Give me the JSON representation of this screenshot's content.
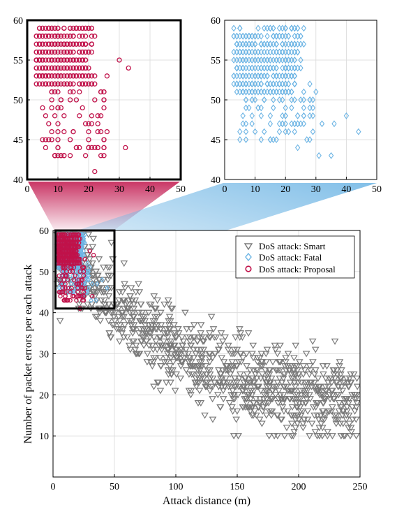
{
  "chart_data": {
    "type": "scatter",
    "main": {
      "xlabel": "Attack distance (m)",
      "ylabel": "Number of packet errors per each attack",
      "xlim": [
        0,
        250
      ],
      "ylim": [
        0,
        60
      ],
      "xticks": [
        0,
        50,
        100,
        150,
        200,
        250
      ],
      "yticks": [
        10,
        20,
        30,
        40,
        50,
        60
      ],
      "ytick_labels": [
        "10",
        "20",
        "30",
        "40",
        "50",
        "60"
      ],
      "grid": true,
      "legend_position": "top-right",
      "zoom_box": {
        "x": [
          2,
          50
        ],
        "y": [
          41,
          60
        ]
      }
    },
    "insets": [
      {
        "name": "proposal-zoom",
        "xlim": [
          0,
          50
        ],
        "ylim": [
          40,
          60
        ],
        "xticks": [
          0,
          10,
          20,
          30,
          40,
          50
        ],
        "yticks": [
          40,
          45,
          50,
          55,
          60
        ],
        "series_ref": "Proposal"
      },
      {
        "name": "fatal-zoom",
        "xlim": [
          0,
          50
        ],
        "ylim": [
          40,
          60
        ],
        "xticks": [
          0,
          10,
          20,
          30,
          40,
          50
        ],
        "yticks": [
          40,
          45,
          50,
          55,
          60
        ],
        "series_ref": "Fatal"
      }
    ],
    "series": [
      {
        "name": "DoS attack: Smart",
        "marker": "triangle-down",
        "color": "#7a7a7a",
        "trend": {
          "x": [
            0,
            20,
            40,
            50,
            75,
            100,
            125,
            150,
            175,
            200,
            225,
            250
          ],
          "y": [
            57,
            51,
            44,
            41,
            35,
            30,
            27,
            24,
            22,
            20,
            19,
            19
          ]
        },
        "spread": 7,
        "count": 1100,
        "x_range": [
          3,
          248
        ],
        "y_range": [
          10,
          59
        ]
      },
      {
        "name": "DoS attack: Fatal",
        "marker": "diamond",
        "color": "#6cb4e4",
        "trend": {
          "x": [
            3,
            10,
            20,
            25,
            30,
            35,
            44
          ],
          "y": [
            55,
            55,
            53,
            51,
            49,
            47,
            45
          ]
        },
        "count": 520,
        "x_range": [
          3,
          44
        ],
        "y_range": [
          43,
          59
        ],
        "dense_region": {
          "x": [
            3,
            24
          ],
          "y": [
            51,
            59
          ]
        },
        "outliers": [
          {
            "x": 44,
            "y": 46
          },
          {
            "x": 40,
            "y": 48
          },
          {
            "x": 36,
            "y": 47
          },
          {
            "x": 32,
            "y": 47
          },
          {
            "x": 28,
            "y": 45
          },
          {
            "x": 24,
            "y": 44
          },
          {
            "x": 35,
            "y": 43
          },
          {
            "x": 31,
            "y": 43
          },
          {
            "x": 20,
            "y": 46
          },
          {
            "x": 29,
            "y": 46
          }
        ]
      },
      {
        "name": "DoS attack: Proposal",
        "marker": "circle",
        "color": "#c0124a",
        "count": 520,
        "x_range": [
          3,
          33
        ],
        "y_range": [
          41,
          59
        ],
        "dense_region": {
          "x": [
            3,
            20
          ],
          "y": [
            52,
            59
          ]
        },
        "outliers": [
          {
            "x": 22,
            "y": 41
          },
          {
            "x": 12,
            "y": 43
          },
          {
            "x": 32,
            "y": 44
          },
          {
            "x": 20,
            "y": 44
          },
          {
            "x": 25,
            "y": 44
          },
          {
            "x": 33,
            "y": 54
          },
          {
            "x": 30,
            "y": 55
          },
          {
            "x": 7,
            "y": 47
          },
          {
            "x": 10,
            "y": 45
          },
          {
            "x": 19,
            "y": 47
          }
        ]
      }
    ]
  }
}
